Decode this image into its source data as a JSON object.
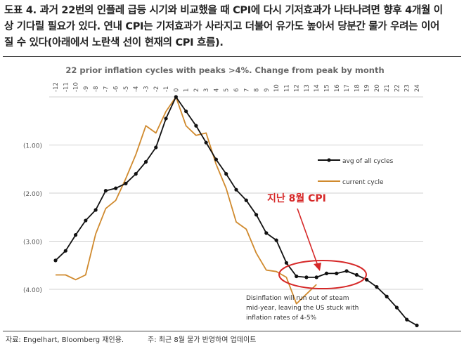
{
  "caption": {
    "line1": "도표 4. 과거 22번의 인플레 급등 시기와 비교했을 때 CPI에 다시 기저효과가 나타나려면 향후 4개월 이",
    "line2": "상 기다릴 필요가 있다. 연내 CPI는 기저효과가 사라지고 더불어 유가도 높아서 당분간 물가 우려는 이어",
    "line3": "질 수 있다(아래에서 노란색 선이 현재의 CPI 흐름)."
  },
  "chart_data": {
    "type": "line",
    "title": "22 prior inflation cycles with peaks >4%. Change from peak by month",
    "x_tick_labels": [
      "-12",
      "-11",
      "-10",
      "-9",
      "-8",
      "-7",
      "-6",
      "-5",
      "-4",
      "-3",
      "-2",
      "-1",
      "0",
      "1",
      "2",
      "3",
      "4",
      "5",
      "6",
      "7",
      "8",
      "9",
      "10",
      "11",
      "12",
      "13",
      "14",
      "15",
      "16",
      "17",
      "18",
      "19",
      "20",
      "21",
      "22",
      "23",
      "24"
    ],
    "y_tick_labels": [
      "",
      "(1.00)",
      "(2.00)",
      "(3.00)",
      "(4.00)"
    ],
    "ylim": [
      -4.9,
      0
    ],
    "xlim": [
      -12,
      24
    ],
    "series": [
      {
        "name": "avg of all cycles",
        "color": "#111111",
        "marker": true,
        "x": [
          -12,
          -11,
          -10,
          -9,
          -8,
          -7,
          -6,
          -5,
          -4,
          -3,
          -2,
          -1,
          0,
          1,
          2,
          3,
          4,
          5,
          6,
          7,
          8,
          9,
          10,
          11,
          12,
          13,
          14,
          15,
          16,
          17,
          18,
          19,
          20,
          21,
          22,
          23,
          24
        ],
        "y": [
          -3.4,
          -3.2,
          -2.87,
          -2.57,
          -2.35,
          -1.95,
          -1.9,
          -1.8,
          -1.6,
          -1.35,
          -1.05,
          -0.45,
          0.0,
          -0.3,
          -0.6,
          -0.95,
          -1.3,
          -1.6,
          -1.93,
          -2.15,
          -2.45,
          -2.83,
          -2.98,
          -3.45,
          -3.73,
          -3.75,
          -3.75,
          -3.67,
          -3.67,
          -3.62,
          -3.7,
          -3.8,
          -3.95,
          -4.15,
          -4.38,
          -4.63,
          -4.75
        ]
      },
      {
        "name": "current cycle",
        "color": "#D08A2E",
        "marker": false,
        "x": [
          -12,
          -11,
          -10,
          -9,
          -8,
          -7,
          -6,
          -5,
          -4,
          -3,
          -2,
          -1,
          0,
          1,
          2,
          3,
          4,
          5,
          6,
          7,
          8,
          9,
          10,
          11,
          12,
          13,
          14
        ],
        "y": [
          -3.7,
          -3.7,
          -3.8,
          -3.7,
          -2.85,
          -2.32,
          -2.15,
          -1.7,
          -1.2,
          -0.6,
          -0.75,
          -0.3,
          0.0,
          -0.6,
          -0.8,
          -0.75,
          -1.4,
          -1.9,
          -2.6,
          -2.75,
          -3.25,
          -3.6,
          -3.63,
          -3.75,
          -4.3,
          -4.1,
          -3.9
        ]
      }
    ],
    "legend": {
      "position": "right",
      "items": [
        "avg of all cycles",
        "current cycle"
      ]
    },
    "annotations": {
      "highlight_label": "지난 8월 CPI",
      "highlight_color": "#D62828",
      "note_line1": "Disinflation will run out of steam",
      "note_line2": "mid-year, leaving the US stuck with",
      "note_line3": "inflation rates of 4-5%"
    }
  },
  "footer": {
    "source": "자료: Engelhart, Bloomberg 재인용.",
    "note": "주: 최근 8월 물가 반영하여 업데이트"
  }
}
